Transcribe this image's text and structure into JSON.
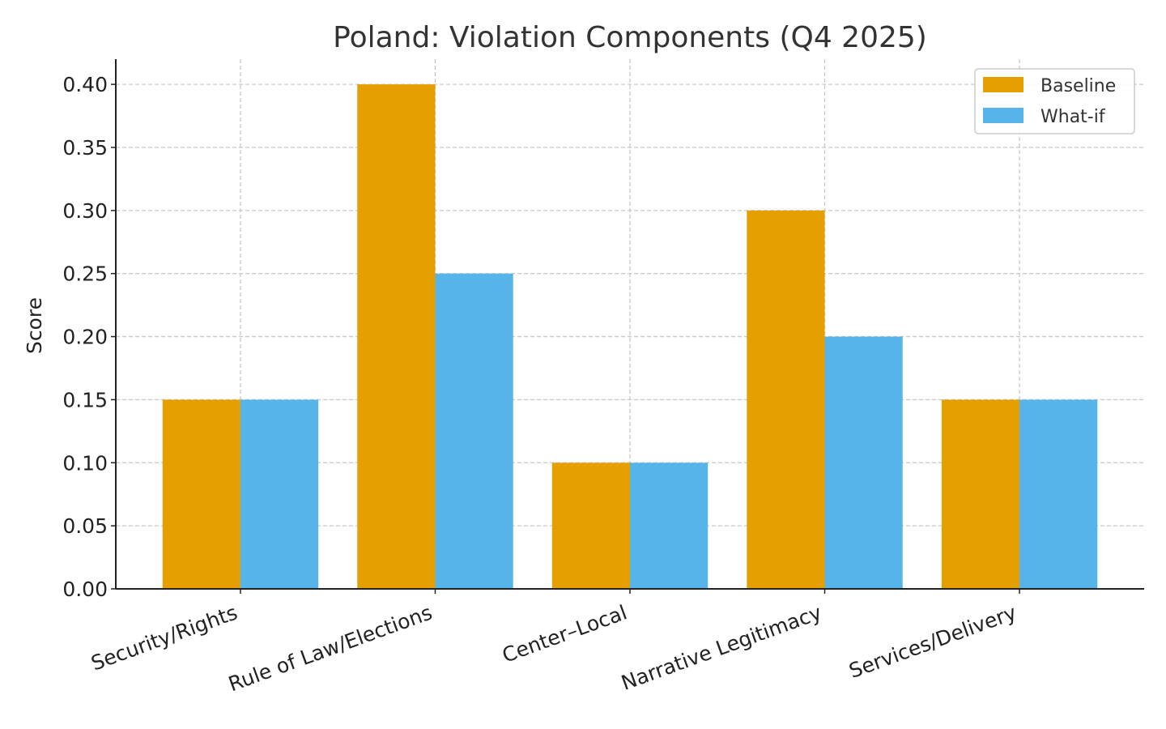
{
  "chart_data": {
    "type": "bar",
    "title": "Poland: Violation Components (Q4 2025)",
    "xlabel": "",
    "ylabel": "Score",
    "categories": [
      "Security/Rights",
      "Rule of Law/Elections",
      "Center–Local",
      "Narrative Legitimacy",
      "Services/Delivery"
    ],
    "series": [
      {
        "name": "Baseline",
        "color": "#E69F00",
        "values": [
          0.15,
          0.4,
          0.1,
          0.3,
          0.15
        ]
      },
      {
        "name": "What-if",
        "color": "#56B4E9",
        "values": [
          0.15,
          0.25,
          0.1,
          0.2,
          0.15
        ]
      }
    ],
    "ylim": [
      0,
      0.42
    ],
    "yticks": [
      "0.00",
      "0.05",
      "0.10",
      "0.15",
      "0.20",
      "0.25",
      "0.30",
      "0.35",
      "0.40"
    ],
    "grid": true,
    "legend_position": "top-right"
  }
}
